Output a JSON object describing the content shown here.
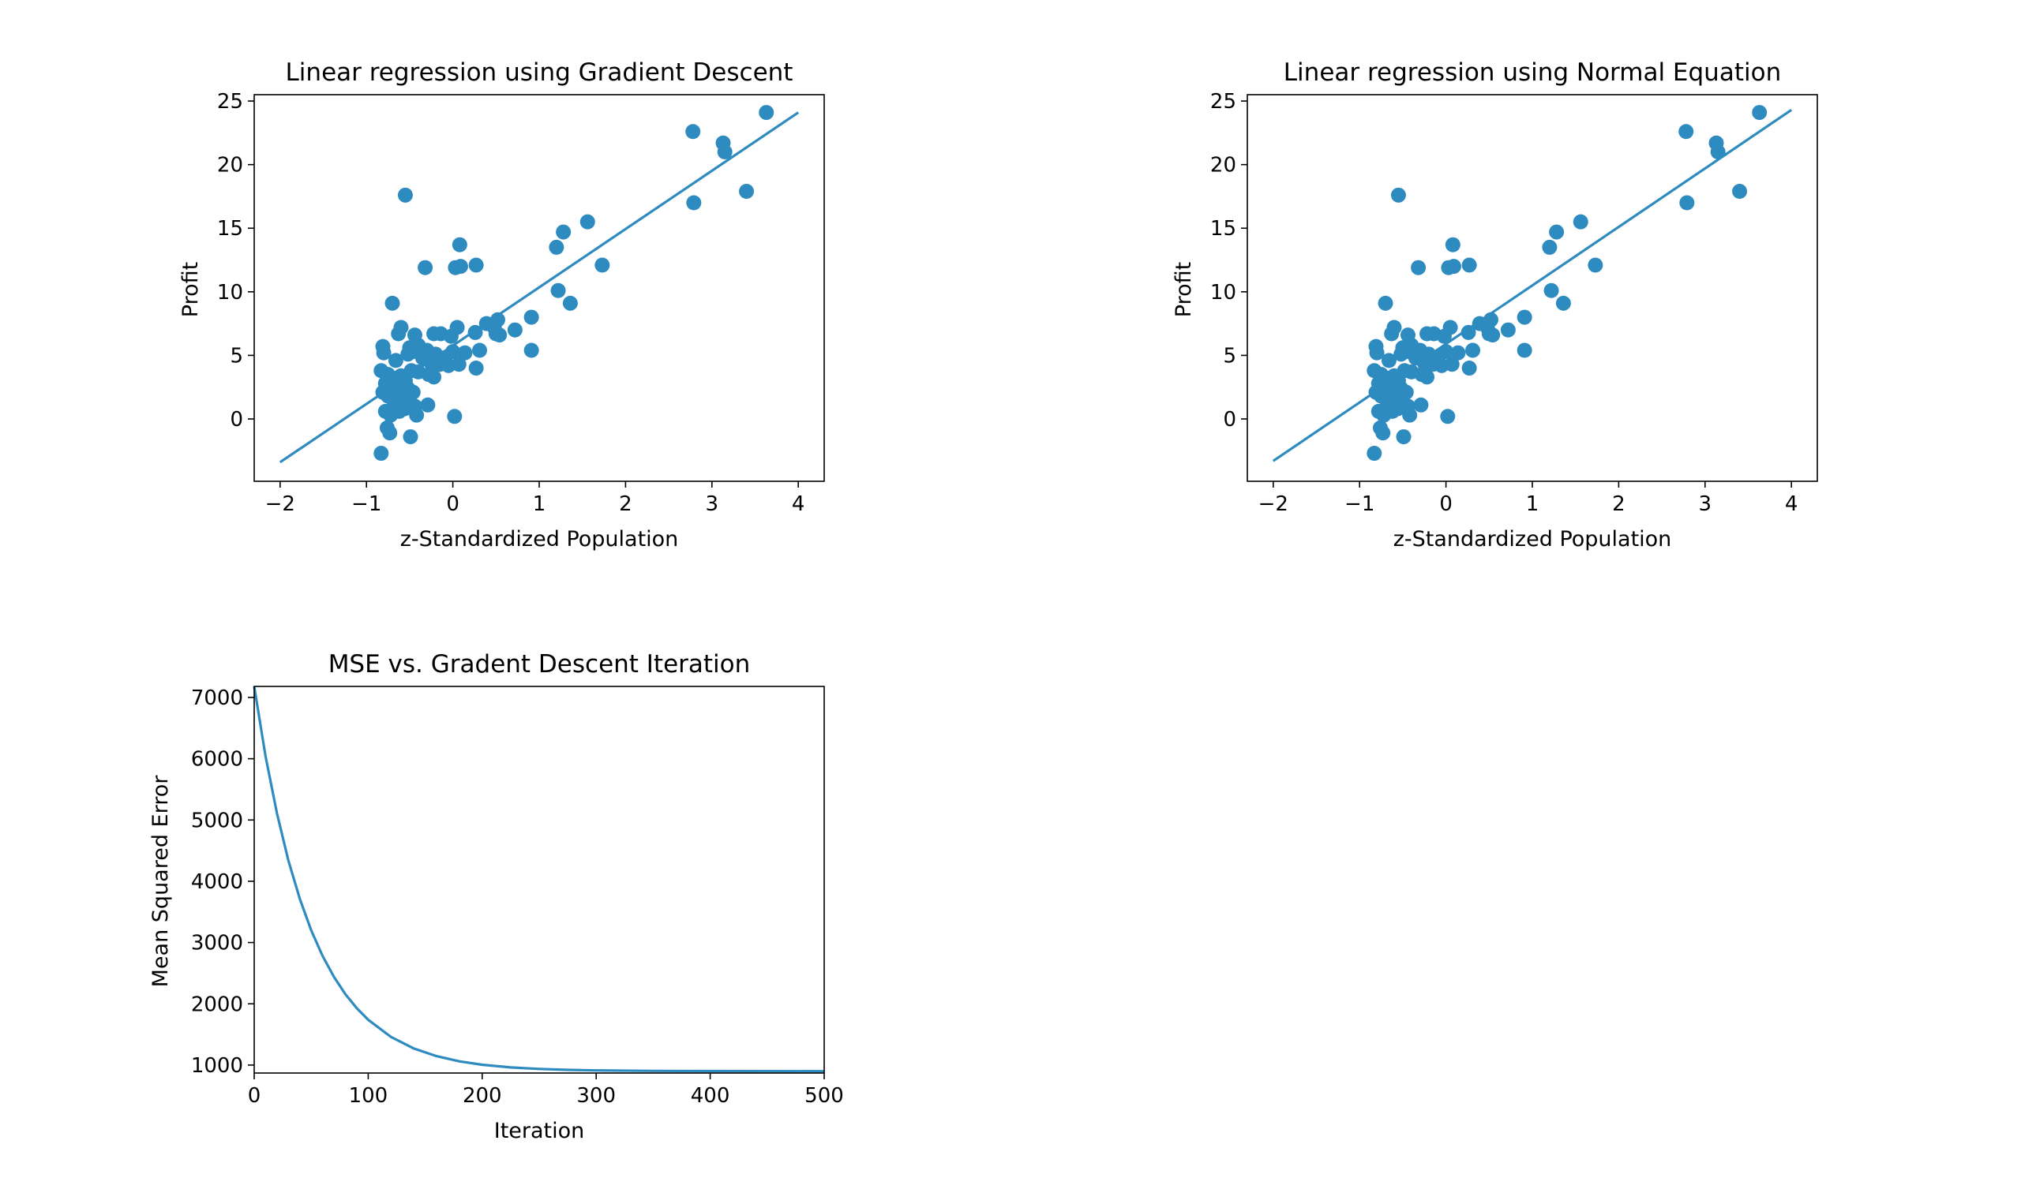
{
  "colors": {
    "series": "#2e8bc0",
    "axis": "#000000"
  },
  "chart_data": [
    {
      "type": "scatter",
      "title": "Linear regression using Gradient Descent",
      "xlabel": "z-Standardized Population",
      "ylabel": "Profit",
      "xlim": [
        -2.3,
        4.3
      ],
      "ylim": [
        -4.9,
        25.5
      ],
      "xticks": [
        -2,
        -1,
        0,
        1,
        2,
        3,
        4
      ],
      "yticks": [
        0,
        5,
        10,
        15,
        20,
        25
      ],
      "grid": false,
      "line": {
        "x": [
          -2,
          4
        ],
        "y": [
          -3.4,
          24.1
        ]
      },
      "points": [
        [
          3.63,
          24.1
        ],
        [
          2.78,
          22.6
        ],
        [
          3.13,
          21.7
        ],
        [
          3.15,
          21.0
        ],
        [
          3.4,
          17.9
        ],
        [
          2.79,
          17.0
        ],
        [
          -0.55,
          17.6
        ],
        [
          1.56,
          15.5
        ],
        [
          1.28,
          14.7
        ],
        [
          1.2,
          13.5
        ],
        [
          1.73,
          12.1
        ],
        [
          1.36,
          9.1
        ],
        [
          1.22,
          10.1
        ],
        [
          0.08,
          13.7
        ],
        [
          0.27,
          12.1
        ],
        [
          0.09,
          12.0
        ],
        [
          0.03,
          11.9
        ],
        [
          -0.32,
          11.9
        ],
        [
          -0.7,
          9.1
        ],
        [
          0.91,
          8.0
        ],
        [
          0.52,
          7.8
        ],
        [
          0.39,
          7.5
        ],
        [
          0.48,
          7.2
        ],
        [
          0.72,
          7.0
        ],
        [
          0.5,
          6.7
        ],
        [
          0.54,
          6.6
        ],
        [
          0.91,
          5.4
        ],
        [
          0.05,
          7.2
        ],
        [
          -0.14,
          6.7
        ],
        [
          -0.22,
          6.7
        ],
        [
          -0.02,
          6.5
        ],
        [
          -0.44,
          6.6
        ],
        [
          -0.6,
          7.2
        ],
        [
          -0.63,
          6.7
        ],
        [
          -0.81,
          5.7
        ],
        [
          -0.4,
          5.8
        ],
        [
          -0.5,
          5.6
        ],
        [
          -0.46,
          5.3
        ],
        [
          -0.3,
          5.4
        ],
        [
          -0.2,
          5.1
        ],
        [
          -0.1,
          4.8
        ],
        [
          0.0,
          5.3
        ],
        [
          0.14,
          5.2
        ],
        [
          0.31,
          5.4
        ],
        [
          0.26,
          6.8
        ],
        [
          -0.8,
          5.2
        ],
        [
          -0.66,
          4.6
        ],
        [
          -0.52,
          5.1
        ],
        [
          -0.35,
          4.8
        ],
        [
          -0.25,
          4.4
        ],
        [
          -0.15,
          4.3
        ],
        [
          -0.05,
          4.2
        ],
        [
          0.07,
          4.3
        ],
        [
          0.27,
          4.0
        ],
        [
          -0.83,
          3.8
        ],
        [
          -0.75,
          3.5
        ],
        [
          -0.68,
          3.2
        ],
        [
          -0.6,
          3.4
        ],
        [
          -0.55,
          3.0
        ],
        [
          -0.48,
          3.8
        ],
        [
          -0.4,
          3.7
        ],
        [
          -0.28,
          3.5
        ],
        [
          -0.22,
          3.3
        ],
        [
          -0.78,
          2.8
        ],
        [
          -0.72,
          2.5
        ],
        [
          -0.66,
          2.2
        ],
        [
          -0.6,
          2.6
        ],
        [
          -0.52,
          2.4
        ],
        [
          -0.46,
          2.1
        ],
        [
          -0.81,
          2.1
        ],
        [
          -0.75,
          1.8
        ],
        [
          -0.7,
          1.6
        ],
        [
          -0.64,
          1.4
        ],
        [
          -0.58,
          1.9
        ],
        [
          -0.5,
          1.3
        ],
        [
          -0.44,
          1.0
        ],
        [
          -0.68,
          0.9
        ],
        [
          -0.62,
          0.6
        ],
        [
          -0.56,
          0.8
        ],
        [
          -0.78,
          0.6
        ],
        [
          -0.72,
          0.3
        ],
        [
          -0.42,
          0.3
        ],
        [
          -0.29,
          1.1
        ],
        [
          0.02,
          0.2
        ],
        [
          -0.76,
          -0.7
        ],
        [
          -0.73,
          -1.1
        ],
        [
          -0.49,
          -1.4
        ],
        [
          -0.83,
          -2.7
        ]
      ]
    },
    {
      "type": "scatter",
      "title": "Linear regression using Normal Equation",
      "xlabel": "z-Standardized Population",
      "ylabel": "Profit",
      "xlim": [
        -2.3,
        4.3
      ],
      "ylim": [
        -4.9,
        25.5
      ],
      "xticks": [
        -2,
        -1,
        0,
        1,
        2,
        3,
        4
      ],
      "yticks": [
        0,
        5,
        10,
        15,
        20,
        25
      ],
      "grid": false,
      "line": {
        "x": [
          -2,
          4
        ],
        "y": [
          -3.3,
          24.3
        ]
      },
      "points": [
        [
          3.63,
          24.1
        ],
        [
          2.78,
          22.6
        ],
        [
          3.13,
          21.7
        ],
        [
          3.15,
          21.0
        ],
        [
          3.4,
          17.9
        ],
        [
          2.79,
          17.0
        ],
        [
          -0.55,
          17.6
        ],
        [
          1.56,
          15.5
        ],
        [
          1.28,
          14.7
        ],
        [
          1.2,
          13.5
        ],
        [
          1.73,
          12.1
        ],
        [
          1.36,
          9.1
        ],
        [
          1.22,
          10.1
        ],
        [
          0.08,
          13.7
        ],
        [
          0.27,
          12.1
        ],
        [
          0.09,
          12.0
        ],
        [
          0.03,
          11.9
        ],
        [
          -0.32,
          11.9
        ],
        [
          -0.7,
          9.1
        ],
        [
          0.91,
          8.0
        ],
        [
          0.52,
          7.8
        ],
        [
          0.39,
          7.5
        ],
        [
          0.48,
          7.2
        ],
        [
          0.72,
          7.0
        ],
        [
          0.5,
          6.7
        ],
        [
          0.54,
          6.6
        ],
        [
          0.91,
          5.4
        ],
        [
          0.05,
          7.2
        ],
        [
          -0.14,
          6.7
        ],
        [
          -0.22,
          6.7
        ],
        [
          -0.02,
          6.5
        ],
        [
          -0.44,
          6.6
        ],
        [
          -0.6,
          7.2
        ],
        [
          -0.63,
          6.7
        ],
        [
          -0.81,
          5.7
        ],
        [
          -0.4,
          5.8
        ],
        [
          -0.5,
          5.6
        ],
        [
          -0.46,
          5.3
        ],
        [
          -0.3,
          5.4
        ],
        [
          -0.2,
          5.1
        ],
        [
          -0.1,
          4.8
        ],
        [
          0.0,
          5.3
        ],
        [
          0.14,
          5.2
        ],
        [
          0.31,
          5.4
        ],
        [
          0.26,
          6.8
        ],
        [
          -0.8,
          5.2
        ],
        [
          -0.66,
          4.6
        ],
        [
          -0.52,
          5.1
        ],
        [
          -0.35,
          4.8
        ],
        [
          -0.25,
          4.4
        ],
        [
          -0.15,
          4.3
        ],
        [
          -0.05,
          4.2
        ],
        [
          0.07,
          4.3
        ],
        [
          0.27,
          4.0
        ],
        [
          -0.83,
          3.8
        ],
        [
          -0.75,
          3.5
        ],
        [
          -0.68,
          3.2
        ],
        [
          -0.6,
          3.4
        ],
        [
          -0.55,
          3.0
        ],
        [
          -0.48,
          3.8
        ],
        [
          -0.4,
          3.7
        ],
        [
          -0.28,
          3.5
        ],
        [
          -0.22,
          3.3
        ],
        [
          -0.78,
          2.8
        ],
        [
          -0.72,
          2.5
        ],
        [
          -0.66,
          2.2
        ],
        [
          -0.6,
          2.6
        ],
        [
          -0.52,
          2.4
        ],
        [
          -0.46,
          2.1
        ],
        [
          -0.81,
          2.1
        ],
        [
          -0.75,
          1.8
        ],
        [
          -0.7,
          1.6
        ],
        [
          -0.64,
          1.4
        ],
        [
          -0.58,
          1.9
        ],
        [
          -0.5,
          1.3
        ],
        [
          -0.44,
          1.0
        ],
        [
          -0.68,
          0.9
        ],
        [
          -0.62,
          0.6
        ],
        [
          -0.56,
          0.8
        ],
        [
          -0.78,
          0.6
        ],
        [
          -0.72,
          0.3
        ],
        [
          -0.42,
          0.3
        ],
        [
          -0.29,
          1.1
        ],
        [
          0.02,
          0.2
        ],
        [
          -0.76,
          -0.7
        ],
        [
          -0.73,
          -1.1
        ],
        [
          -0.49,
          -1.4
        ],
        [
          -0.83,
          -2.7
        ]
      ]
    },
    {
      "type": "line",
      "title": "MSE vs. Gradent Descent Iteration",
      "xlabel": "Iteration",
      "ylabel": "Mean Squared Error",
      "xlim": [
        0,
        500
      ],
      "ylim": [
        870,
        7180
      ],
      "xticks": [
        0,
        100,
        200,
        300,
        400,
        500
      ],
      "yticks": [
        1000,
        2000,
        3000,
        4000,
        5000,
        6000,
        7000
      ],
      "grid": false,
      "series": [
        {
          "x": [
            0,
            10,
            20,
            30,
            40,
            50,
            60,
            70,
            80,
            90,
            100,
            120,
            140,
            160,
            180,
            200,
            225,
            250,
            275,
            300,
            350,
            400,
            450,
            500
          ],
          "values": [
            7180,
            6038,
            5104,
            4338,
            3712,
            3200,
            2781,
            2437,
            2157,
            1927,
            1739,
            1459,
            1271,
            1145,
            1061,
            1005,
            962,
            937,
            922,
            913,
            905,
            902,
            901,
            900
          ]
        }
      ]
    }
  ]
}
